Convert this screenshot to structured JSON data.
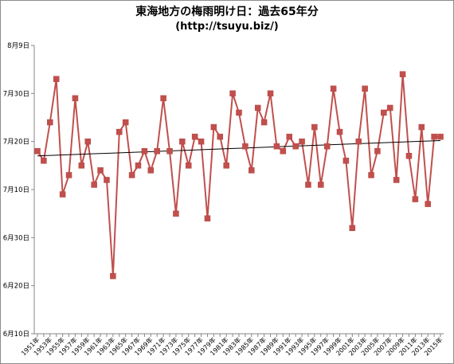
{
  "chart_data": {
    "type": "line",
    "title": "東海地方の梅雨明け日：過去65年分",
    "subtitle": "(http://tsuyu.biz/)",
    "xlabel": "",
    "ylabel": "",
    "x": [
      1951,
      1952,
      1953,
      1954,
      1955,
      1956,
      1957,
      1958,
      1959,
      1960,
      1961,
      1962,
      1963,
      1964,
      1965,
      1966,
      1967,
      1968,
      1969,
      1970,
      1971,
      1972,
      1973,
      1974,
      1975,
      1976,
      1977,
      1978,
      1979,
      1980,
      1981,
      1982,
      1983,
      1984,
      1985,
      1986,
      1987,
      1988,
      1989,
      1990,
      1991,
      1992,
      1993,
      1994,
      1995,
      1996,
      1997,
      1998,
      1999,
      2000,
      2001,
      2002,
      2003,
      2004,
      2005,
      2006,
      2007,
      2008,
      2009,
      2010,
      2011,
      2012,
      2013,
      2014,
      2015
    ],
    "x_tick_labels": [
      "1951年",
      "1953年",
      "1955年",
      "1957年",
      "1959年",
      "1961年",
      "1963年",
      "1965年",
      "1967年",
      "1969年",
      "1971年",
      "1973年",
      "1975年",
      "1977年",
      "1979年",
      "1981年",
      "1983年",
      "1985年",
      "1987年",
      "1989年",
      "1991年",
      "1993年",
      "1995年",
      "1997年",
      "1999年",
      "2001年",
      "2003年",
      "2005年",
      "2007年",
      "2009年",
      "2011年",
      "2013年",
      "2015年"
    ],
    "y_unit": "days since June 10",
    "y_ticks": [
      {
        "value": 0,
        "label": "6月10日"
      },
      {
        "value": 10,
        "label": "6月20日"
      },
      {
        "value": 20,
        "label": "6月30日"
      },
      {
        "value": 30,
        "label": "7月10日"
      },
      {
        "value": 40,
        "label": "7月20日"
      },
      {
        "value": 50,
        "label": "7月30日"
      },
      {
        "value": 60,
        "label": "8月9日"
      }
    ],
    "ylim": [
      0,
      60
    ],
    "series": [
      {
        "name": "",
        "color": "#c0504d",
        "values": [
          38,
          36,
          44,
          53,
          29,
          33,
          49,
          35,
          40,
          31,
          34,
          32,
          12,
          42,
          44,
          33,
          35,
          38,
          34,
          38,
          49,
          38,
          25,
          40,
          35,
          41,
          40,
          24,
          43,
          41,
          35,
          50,
          46,
          39,
          34,
          47,
          44,
          50,
          39,
          38,
          41,
          39,
          40,
          31,
          43,
          31,
          39,
          51,
          42,
          36,
          22,
          40,
          51,
          33,
          38,
          46,
          47,
          32,
          54,
          37,
          28,
          43,
          27,
          41,
          41
        ]
      }
    ],
    "trendline": {
      "color": "#000000",
      "start": 37,
      "end": 40.2
    },
    "grid": false,
    "legend": "none"
  }
}
